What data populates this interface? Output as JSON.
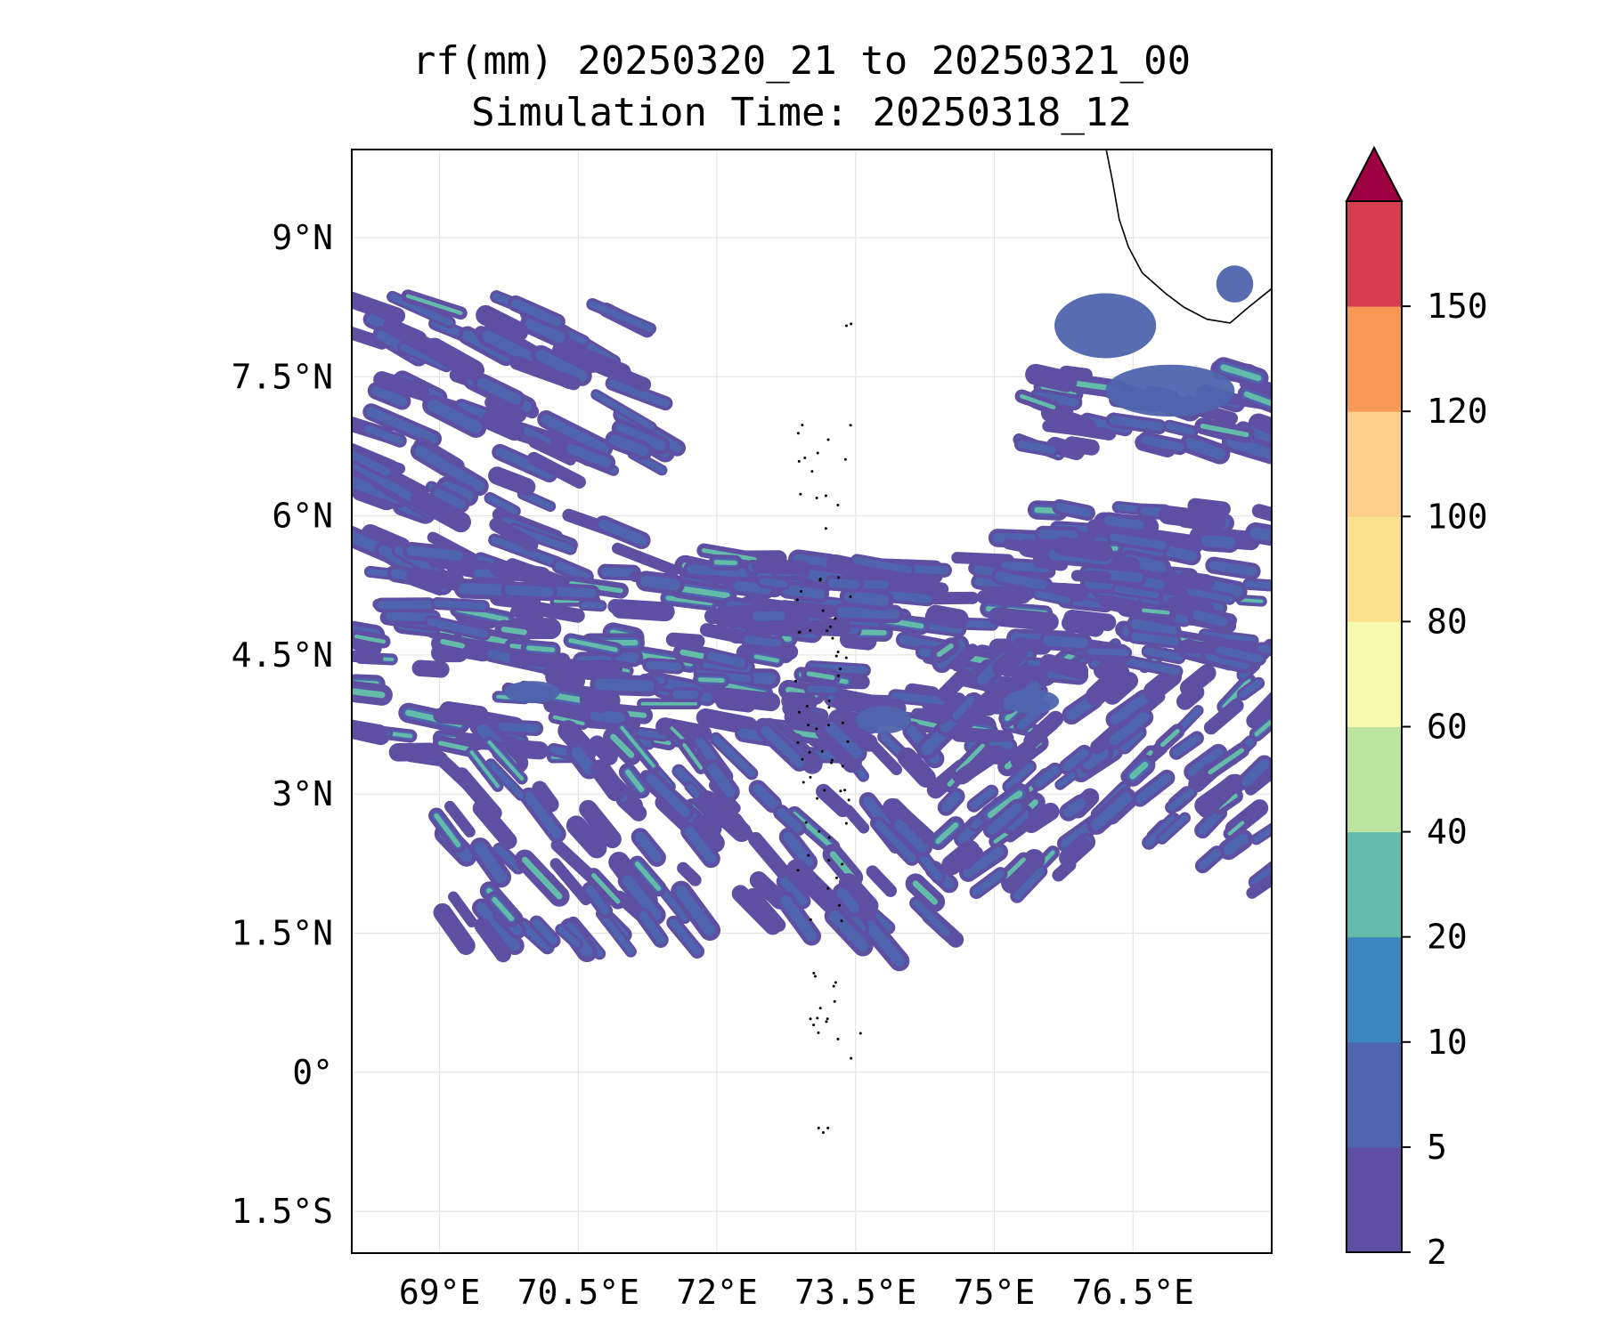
{
  "title": {
    "line1": "rf(mm) 20250320_21 to 20250321_00",
    "line2": "Simulation Time: 20250318_12"
  },
  "map": {
    "lon_range": [
      68.05,
      78.0
    ],
    "lat_range": [
      -1.95,
      9.95
    ],
    "gridlines": true,
    "lon_ticks": [
      69,
      70.5,
      72,
      73.5,
      75,
      76.5
    ],
    "lon_tick_labels": [
      "69°E",
      "70.5°E",
      "72°E",
      "73.5°E",
      "75°E",
      "76.5°E"
    ],
    "lat_ticks": [
      9,
      7.5,
      6,
      4.5,
      3,
      1.5,
      0,
      -1.5
    ],
    "lat_tick_labels": [
      "9°N",
      "7.5°N",
      "6°N",
      "4.5°N",
      "3°N",
      "1.5°N",
      "0°",
      "1.5°S"
    ]
  },
  "colorbar": {
    "levels": [
      2,
      5,
      10,
      20,
      40,
      60,
      80,
      100,
      120,
      150
    ],
    "labels": [
      "2",
      "5",
      "10",
      "20",
      "40",
      "60",
      "80",
      "100",
      "120",
      "150"
    ],
    "colors": [
      "#5e4fa2",
      "#4f64ae",
      "#3b84bc",
      "#63bcaa",
      "#bde3a0",
      "#f4fbaf",
      "#fbe18f",
      "#fbd08b",
      "#f89a56",
      "#d53e4f"
    ],
    "extend_color": "#9e0142",
    "extend": "max"
  }
}
